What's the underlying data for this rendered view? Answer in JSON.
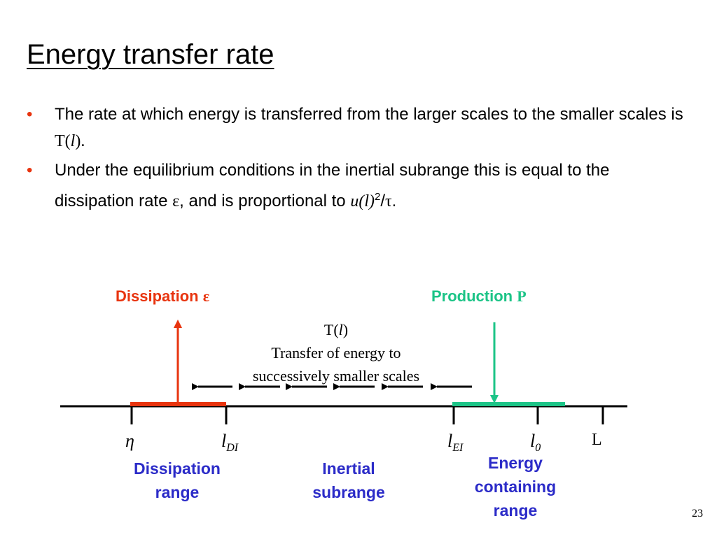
{
  "title": "Energy transfer rate",
  "bullet_marker": "•",
  "bullets": [
    {
      "text_before": "The rate at which energy is transferred from the larger scales to the smaller scales is ",
      "sym": "T(",
      "sym_it": "l",
      "sym_end": ").",
      "text_after": ""
    },
    {
      "text_before": "Under the equilibrium conditions in the inertial subrange this is equal to the dissipation rate ",
      "epsilon": "ε",
      "text_mid": ", and is proportional to ",
      "ul": "u(l)",
      "sq": "2",
      "slash": "/",
      "tau": "τ",
      "end": "."
    }
  ],
  "diagram": {
    "dissipation_label": "Dissipation ",
    "dissipation_symbol": "ε",
    "production_label": "Production ",
    "production_symbol": "P",
    "transfer_symbol": "T(",
    "transfer_symbol_it": "l",
    "transfer_symbol_end": ")",
    "transfer_line1": "Transfer of energy to",
    "transfer_line2": "successively smaller scales",
    "ticks": [
      {
        "main": "η",
        "sub": ""
      },
      {
        "main": "l",
        "sub": "DI"
      },
      {
        "main": "l",
        "sub": "EI"
      },
      {
        "main": "l",
        "sub": "0"
      },
      {
        "main": "L",
        "sub": ""
      }
    ],
    "ranges": [
      {
        "line1": "Dissipation",
        "line2": "range",
        "line3": ""
      },
      {
        "line1": "Inertial",
        "line2": "subrange",
        "line3": ""
      },
      {
        "line1": "Energy",
        "line2": "containing",
        "line3": "range"
      }
    ],
    "colors": {
      "dissipation": "#e8340f",
      "production": "#1cc487",
      "range_text": "#2b2bc8"
    }
  },
  "page_number": "23"
}
